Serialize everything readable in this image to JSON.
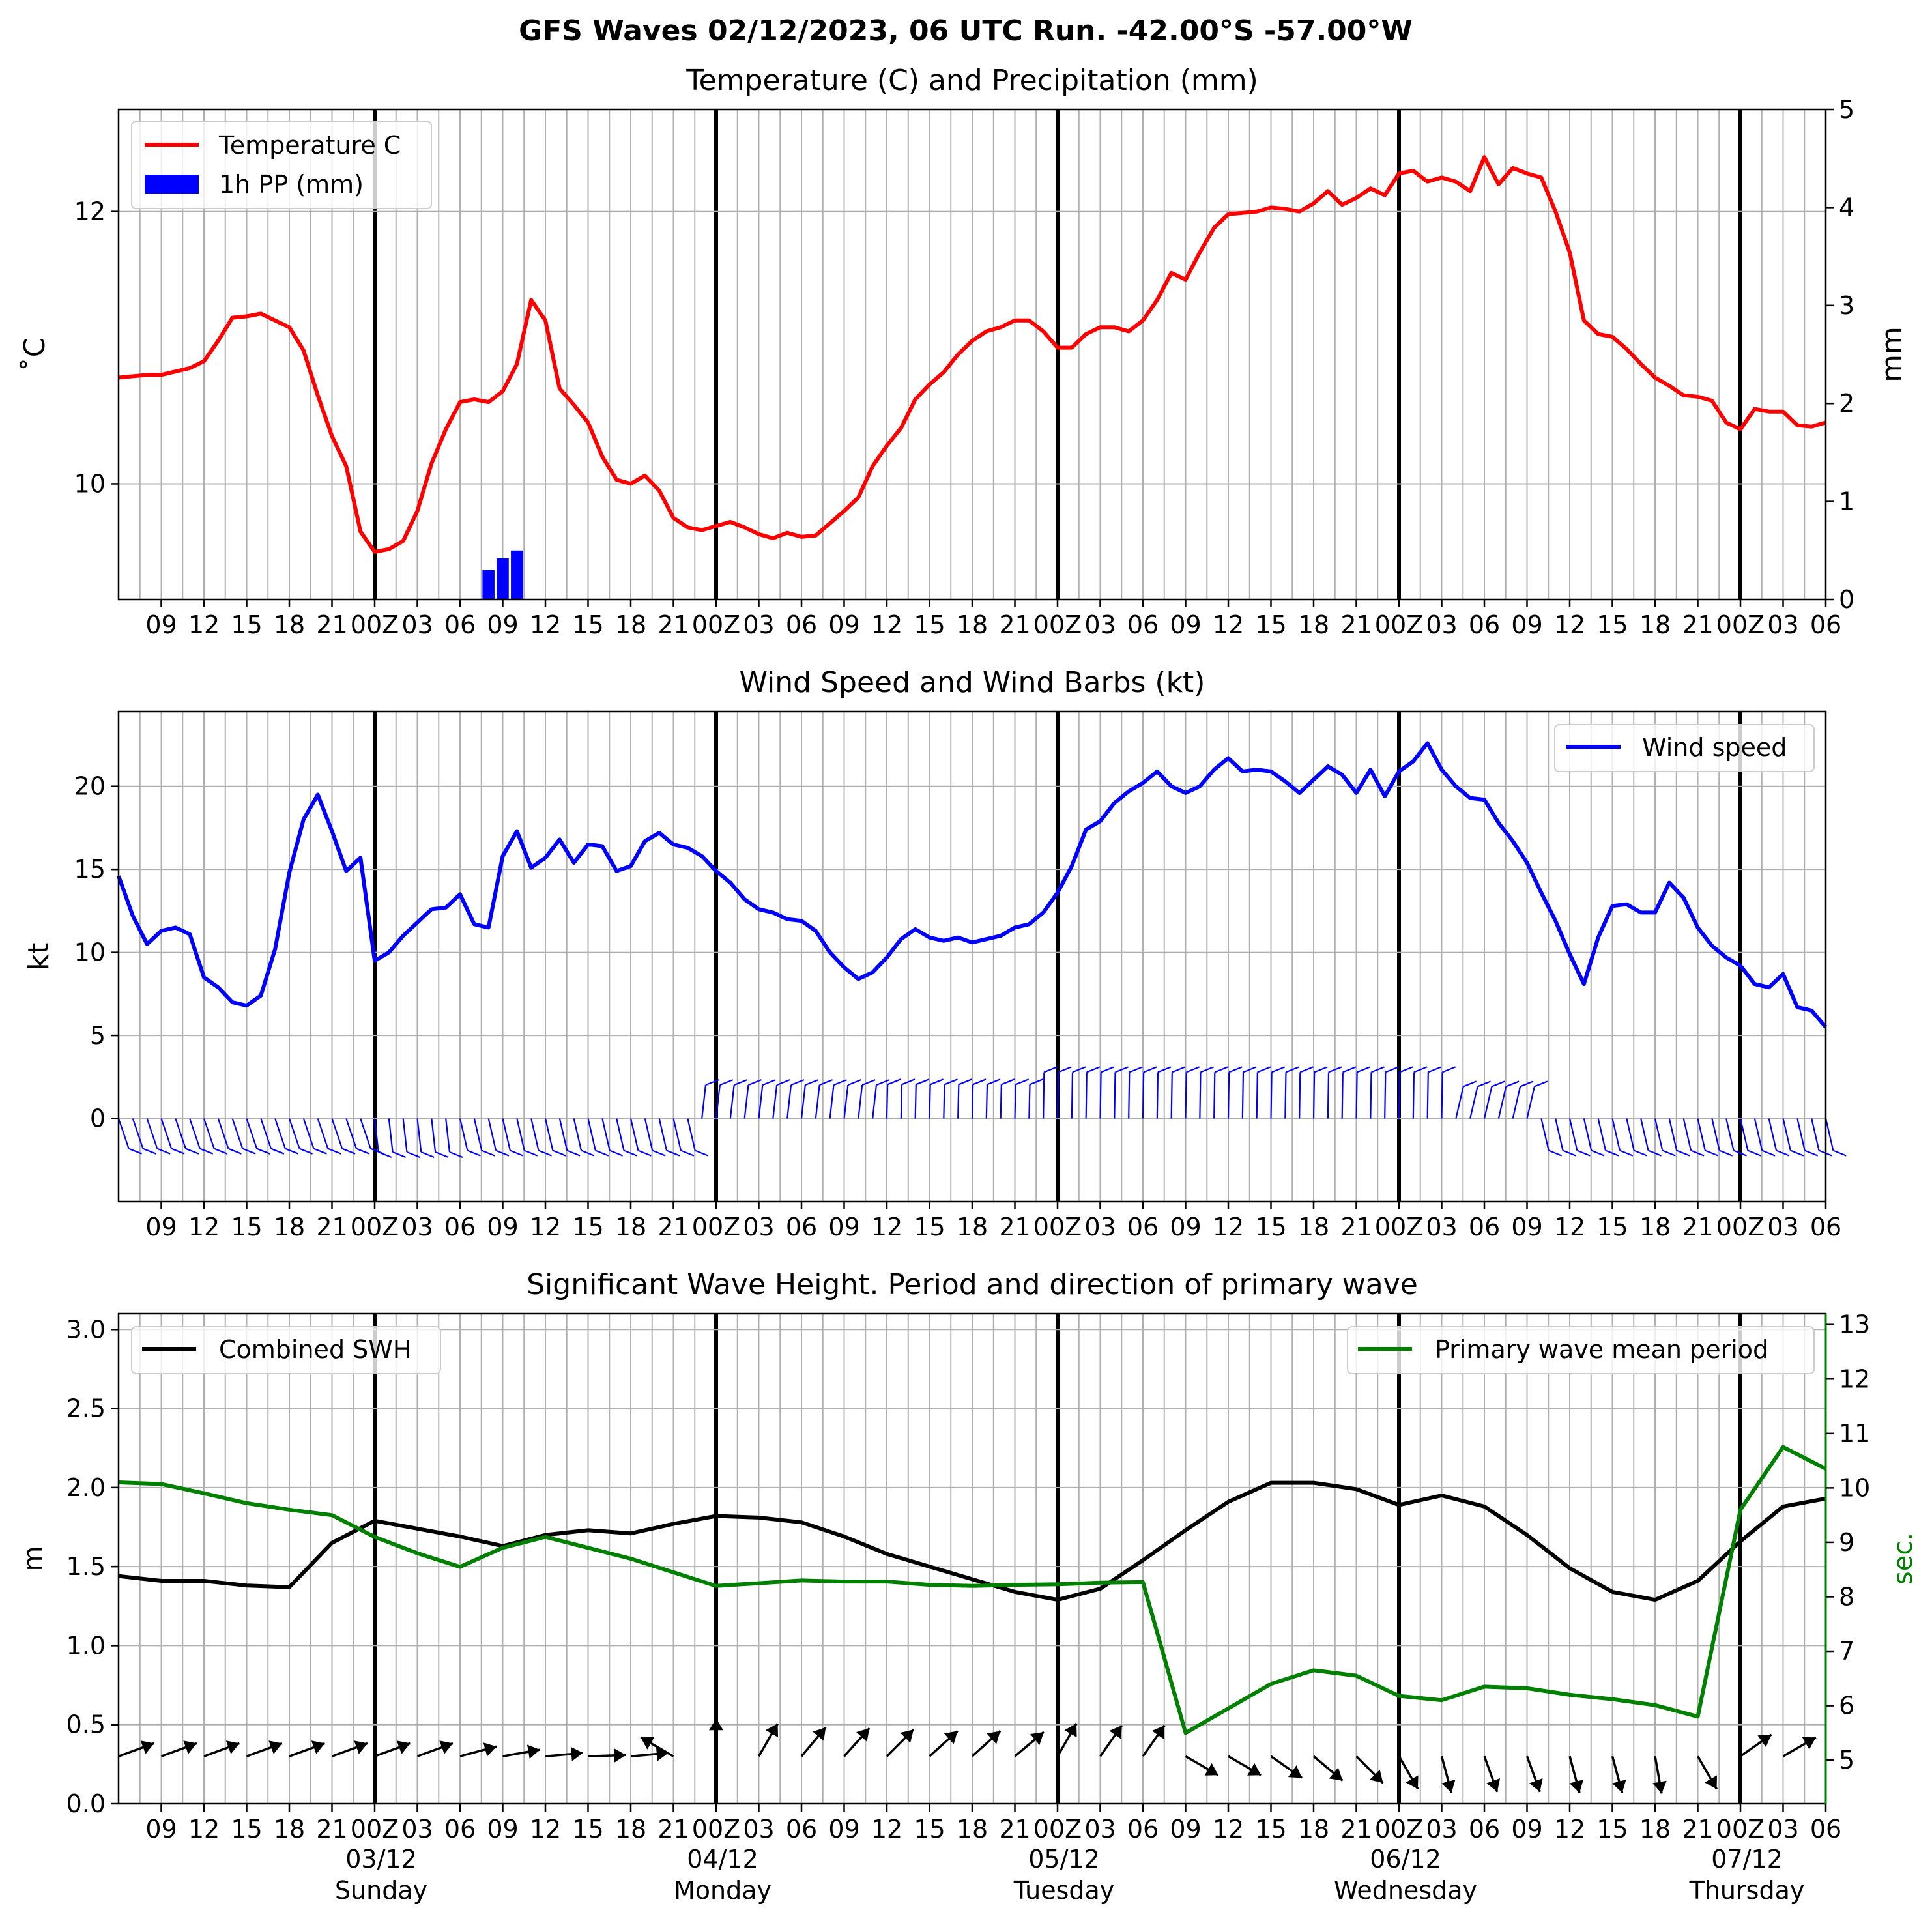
{
  "suptitle": "GFS Waves 02/12/2023, 06 UTC Run. -42.00°S -57.00°W",
  "time_axis": {
    "start_hour": 6,
    "end_hour": 126,
    "tick_labels": [
      "09",
      "12",
      "15",
      "18",
      "21",
      "00Z",
      "03",
      "06",
      "09",
      "12",
      "15",
      "18",
      "21",
      "00Z",
      "03",
      "06",
      "09",
      "12",
      "15",
      "18",
      "21",
      "00Z",
      "03",
      "06",
      "09",
      "12",
      "15",
      "18",
      "21",
      "00Z",
      "03",
      "06",
      "09",
      "12",
      "15",
      "18",
      "21",
      "00Z",
      "03",
      "06"
    ],
    "day_labels": [
      {
        "date": "03/12",
        "weekday": "Sunday"
      },
      {
        "date": "04/12",
        "weekday": "Monday"
      },
      {
        "date": "05/12",
        "weekday": "Tuesday"
      },
      {
        "date": "06/12",
        "weekday": "Wednesday"
      },
      {
        "date": "07/12",
        "weekday": "Thursday"
      }
    ]
  },
  "chart_data": [
    {
      "type": "line",
      "title": "Temperature (C) and Precipitation (mm)",
      "ylabel": "˚C",
      "ylabel_right": "mm",
      "ylim": [
        9.15,
        12.75
      ],
      "ylim_right": [
        0,
        5
      ],
      "yticks": [
        10,
        12
      ],
      "yticks_right": [
        0,
        1,
        2,
        3,
        4,
        5
      ],
      "legend": {
        "position": "top-left",
        "entries": [
          "Temperature C",
          "1h PP (mm)"
        ]
      },
      "grid": true,
      "series": [
        {
          "name": "Temperature C",
          "color": "#ff0000",
          "x_hours": [
            6,
            8,
            9,
            11,
            12,
            13,
            14,
            15,
            16,
            17,
            18,
            19,
            20,
            21,
            22,
            23,
            24,
            25,
            26,
            27,
            28,
            29,
            30,
            31,
            32,
            33,
            34,
            35,
            36,
            37,
            38,
            39,
            40,
            41,
            42,
            43,
            44,
            45,
            46,
            47,
            48,
            49,
            50,
            51,
            52,
            53,
            54,
            55,
            56,
            57,
            58,
            59,
            60,
            61,
            62,
            63,
            64,
            65,
            66,
            67,
            68,
            69,
            70,
            71,
            72,
            73,
            74,
            75,
            76,
            77,
            78,
            79,
            80,
            81,
            82,
            83,
            84,
            85,
            86,
            87,
            88,
            89,
            90,
            91,
            92,
            93,
            94,
            95,
            96,
            97,
            98,
            99,
            100,
            101,
            102,
            103,
            104,
            105,
            106,
            107,
            108,
            109,
            110,
            111,
            112,
            113,
            114,
            115,
            116,
            117,
            118,
            119,
            120,
            121,
            122,
            123,
            124,
            125,
            126
          ],
          "values": [
            10.78,
            10.8,
            10.8,
            10.85,
            10.9,
            11.05,
            11.22,
            11.23,
            11.25,
            11.2,
            11.15,
            10.98,
            10.65,
            10.35,
            10.13,
            9.65,
            9.5,
            9.52,
            9.58,
            9.8,
            10.15,
            10.4,
            10.6,
            10.62,
            10.6,
            10.68,
            10.88,
            11.35,
            11.2,
            10.7,
            10.58,
            10.45,
            10.2,
            10.03,
            10.0,
            10.06,
            9.95,
            9.75,
            9.68,
            9.66,
            9.69,
            9.72,
            9.68,
            9.63,
            9.6,
            9.64,
            9.61,
            9.62,
            9.71,
            9.8,
            9.9,
            10.13,
            10.28,
            10.41,
            10.62,
            10.73,
            10.82,
            10.95,
            11.05,
            11.12,
            11.15,
            11.2,
            11.2,
            11.12,
            11.0,
            11.0,
            11.1,
            11.15,
            11.15,
            11.12,
            11.2,
            11.35,
            11.55,
            11.5,
            11.7,
            11.88,
            11.98,
            11.99,
            12.0,
            12.03,
            12.02,
            12.0,
            12.06,
            12.15,
            12.05,
            12.1,
            12.17,
            12.12,
            12.28,
            12.3,
            12.22,
            12.25,
            12.22,
            12.15,
            12.4,
            12.2,
            12.32,
            12.28,
            12.25,
            12.0,
            11.7,
            11.2,
            11.1,
            11.08,
            10.99,
            10.88,
            10.78,
            10.72,
            10.65,
            10.64,
            10.61,
            10.45,
            10.4,
            10.55,
            10.53,
            10.53,
            10.43,
            10.42,
            10.45
          ]
        },
        {
          "name": "1h PP (mm)",
          "type": "bar",
          "axis": "right",
          "color": "#0000ff",
          "x_hours": [
            32,
            33,
            34
          ],
          "values": [
            0.3,
            0.42,
            0.5
          ]
        }
      ]
    },
    {
      "type": "line",
      "title": "Wind Speed and Wind Barbs (kt)",
      "ylabel": "kt",
      "ylim": [
        -5,
        24.5
      ],
      "yticks": [
        0,
        5,
        10,
        15,
        20
      ],
      "legend": {
        "position": "top-right",
        "entries": [
          "Wind speed"
        ]
      },
      "grid": true,
      "series": [
        {
          "name": "Wind speed",
          "color": "#0000ff",
          "x_hours": [
            6,
            7,
            8,
            9,
            10,
            11,
            12,
            13,
            14,
            15,
            16,
            17,
            18,
            19,
            20,
            21,
            22,
            23,
            24,
            25,
            26,
            27,
            28,
            29,
            30,
            31,
            32,
            33,
            34,
            35,
            36,
            37,
            38,
            39,
            40,
            41,
            42,
            43,
            44,
            45,
            46,
            47,
            48,
            49,
            50,
            51,
            52,
            53,
            54,
            55,
            56,
            57,
            58,
            59,
            60,
            61,
            62,
            63,
            64,
            65,
            66,
            67,
            68,
            69,
            70,
            71,
            72,
            73,
            74,
            75,
            76,
            77,
            78,
            79,
            80,
            81,
            82,
            83,
            84,
            85,
            86,
            87,
            88,
            89,
            90,
            91,
            92,
            93,
            94,
            95,
            96,
            97,
            98,
            99,
            100,
            101,
            102,
            103,
            104,
            105,
            106,
            107,
            108,
            109,
            110,
            111,
            112,
            113,
            114,
            115,
            116,
            117,
            118,
            119,
            120,
            121,
            122,
            123,
            124,
            125,
            126
          ],
          "values": [
            14.6,
            12.2,
            10.5,
            11.3,
            11.5,
            11.1,
            8.5,
            7.9,
            7.0,
            6.8,
            7.4,
            10.2,
            14.8,
            18.0,
            19.5,
            17.3,
            14.9,
            15.7,
            9.5,
            10.0,
            11.0,
            11.8,
            12.6,
            12.7,
            13.5,
            11.7,
            11.5,
            15.8,
            17.3,
            15.1,
            15.7,
            16.8,
            15.4,
            16.5,
            16.4,
            14.9,
            15.2,
            16.7,
            17.2,
            16.5,
            16.3,
            15.8,
            14.9,
            14.2,
            13.2,
            12.6,
            12.4,
            12.0,
            11.9,
            11.3,
            10.0,
            9.1,
            8.4,
            8.8,
            9.7,
            10.8,
            11.4,
            10.9,
            10.7,
            10.9,
            10.6,
            10.8,
            11.0,
            11.5,
            11.7,
            12.4,
            13.6,
            15.2,
            17.4,
            17.9,
            19.0,
            19.7,
            20.2,
            20.9,
            20.0,
            19.6,
            20.0,
            21.0,
            21.7,
            20.9,
            21.0,
            20.9,
            20.3,
            19.6,
            20.4,
            21.2,
            20.7,
            19.6,
            21.0,
            19.4,
            20.9,
            21.5,
            22.6,
            21.0,
            20.0,
            19.3,
            19.2,
            17.8,
            16.7,
            15.4,
            13.6,
            11.9,
            9.9,
            8.1,
            10.9,
            12.8,
            12.9,
            12.4,
            12.4,
            14.2,
            13.3,
            11.5,
            10.4,
            9.7,
            9.2,
            8.1,
            7.9,
            8.7,
            6.7,
            6.5,
            5.5
          ]
        }
      ],
      "barbs": {
        "y_hours": [
          6,
          7,
          8,
          9,
          10,
          11,
          12,
          13,
          14,
          15,
          16,
          17,
          18,
          19,
          20,
          21,
          22,
          23,
          24,
          25,
          26,
          27,
          28,
          29,
          30,
          31,
          32,
          33,
          34,
          35,
          36,
          37,
          38,
          39,
          40,
          41,
          42,
          43,
          44,
          45,
          46,
          47,
          48,
          49,
          50,
          51,
          52,
          53,
          54,
          55,
          56,
          57,
          58,
          59,
          60,
          61,
          62,
          63,
          64,
          65,
          66,
          67,
          68,
          69,
          70,
          71,
          72,
          73,
          74,
          75,
          76,
          77,
          78,
          79,
          80,
          81,
          82,
          83,
          84,
          85,
          86,
          87,
          88,
          89,
          90,
          91,
          92,
          93,
          94,
          95,
          96,
          97,
          98,
          99,
          100,
          101,
          102,
          103,
          104,
          105,
          106,
          107,
          108,
          109,
          110,
          111,
          112,
          113,
          114,
          115,
          116,
          117,
          118,
          119,
          120,
          121,
          122,
          123,
          124,
          125,
          126
        ]
      }
    },
    {
      "type": "line",
      "title": "Significant Wave Height. Period and direction of primary wave",
      "ylabel": "m",
      "ylabel_right": "sec.",
      "ylim": [
        0,
        3.1
      ],
      "ylim_right": [
        4.2,
        13.2
      ],
      "yticks": [
        0.0,
        0.5,
        1.0,
        1.5,
        2.0,
        2.5,
        3.0
      ],
      "yticks_right": [
        5,
        6,
        7,
        8,
        9,
        10,
        11,
        12,
        13
      ],
      "legend_left": {
        "position": "top-left",
        "entries": [
          "Combined SWH"
        ]
      },
      "legend_right": {
        "position": "top-right",
        "entries": [
          "Primary wave mean period"
        ]
      },
      "grid": true,
      "series": [
        {
          "name": "Combined SWH",
          "color": "#000000",
          "x_hours": [
            6,
            9,
            12,
            15,
            18,
            21,
            24,
            27,
            30,
            33,
            36,
            39,
            42,
            45,
            48,
            51,
            54,
            57,
            60,
            63,
            66,
            69,
            72,
            75,
            78,
            81,
            84,
            87,
            90,
            93,
            96,
            99,
            102,
            105,
            108,
            111,
            114,
            117,
            120,
            123,
            126
          ],
          "values": [
            1.44,
            1.41,
            1.41,
            1.38,
            1.37,
            1.65,
            1.79,
            1.74,
            1.69,
            1.63,
            1.7,
            1.73,
            1.71,
            1.77,
            1.82,
            1.81,
            1.78,
            1.69,
            1.58,
            1.5,
            1.42,
            1.34,
            1.29,
            1.36,
            1.54,
            1.73,
            1.91,
            2.03,
            2.03,
            1.99,
            1.89,
            1.95,
            1.88,
            1.7,
            1.49,
            1.34,
            1.29,
            1.41,
            1.66,
            1.88,
            1.93
          ]
        },
        {
          "name": "Primary wave mean period",
          "axis": "right",
          "color": "#008000",
          "x_hours": [
            6,
            9,
            12,
            15,
            18,
            21,
            24,
            27,
            30,
            33,
            36,
            39,
            42,
            45,
            48,
            51,
            54,
            57,
            60,
            63,
            66,
            69,
            72,
            75,
            78,
            81,
            84,
            87,
            90,
            93,
            96,
            99,
            102,
            105,
            108,
            111,
            114,
            117,
            120,
            123,
            126
          ],
          "values": [
            10.1,
            10.07,
            9.9,
            9.72,
            9.6,
            9.5,
            9.1,
            8.8,
            8.55,
            8.9,
            9.1,
            8.9,
            8.7,
            8.45,
            8.2,
            8.25,
            8.3,
            8.28,
            8.28,
            8.22,
            8.2,
            8.22,
            8.23,
            8.26,
            8.27,
            5.5,
            5.95,
            6.4,
            6.65,
            6.55,
            6.18,
            6.1,
            6.35,
            6.32,
            6.2,
            6.12,
            6.01,
            5.8,
            9.6,
            10.75,
            10.35
          ]
        }
      ],
      "arrows": {
        "x_hours": [
          6,
          9,
          12,
          15,
          18,
          21,
          24,
          27,
          30,
          33,
          36,
          39,
          42,
          45,
          48,
          51,
          54,
          57,
          60,
          63,
          66,
          69,
          72,
          75,
          78,
          81,
          84,
          87,
          90,
          93,
          96,
          99,
          102,
          105,
          108,
          111,
          114,
          117,
          120,
          123
        ],
        "direction_deg": [
          70,
          70,
          70,
          70,
          70,
          70,
          70,
          70,
          75,
          80,
          85,
          88,
          85,
          300,
          0,
          30,
          40,
          42,
          45,
          48,
          48,
          50,
          30,
          35,
          35,
          120,
          120,
          125,
          130,
          135,
          150,
          165,
          160,
          160,
          165,
          165,
          170,
          150,
          55,
          60
        ]
      }
    }
  ]
}
